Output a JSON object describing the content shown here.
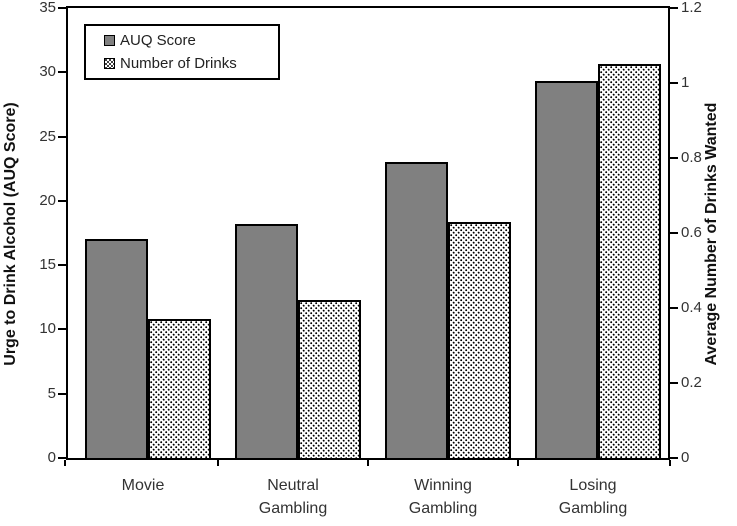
{
  "chart_data": {
    "type": "bar",
    "title": "",
    "categories": [
      "Movie",
      "Neutral Gambling",
      "Winning Gambling",
      "Losing Gambling"
    ],
    "series": [
      {
        "name": "AUQ Score",
        "axis": "left",
        "pattern": "solid-gray",
        "values": [
          17,
          18.2,
          23,
          29.3
        ]
      },
      {
        "name": "Number of Drinks",
        "axis": "right",
        "pattern": "stippled-dots",
        "values": [
          0.37,
          0.42,
          0.63,
          1.05
        ]
      }
    ],
    "left_axis": {
      "label": "Urge to Drink Alcohol (AUQ Score)",
      "min": 0,
      "max": 35,
      "tick_labels": [
        "0",
        "5",
        "10",
        "15",
        "20",
        "25",
        "30",
        "35"
      ]
    },
    "right_axis": {
      "label": "Average Number of Drinks Wanted",
      "min": 0,
      "max": 1.2,
      "tick_labels": [
        "0",
        "0.2",
        "0.4",
        "0.6",
        "0.8",
        "1",
        "1.2"
      ]
    },
    "legend": {
      "position": "top-left",
      "items": [
        "AUQ Score",
        "Number of Drinks"
      ]
    },
    "grid": "off",
    "colors": {
      "auq_bar_fill": "#808080",
      "drinks_bar_fill": "#ffffff",
      "bar_border": "#000000",
      "axis_color": "#000000",
      "text_color": "#333333"
    }
  }
}
